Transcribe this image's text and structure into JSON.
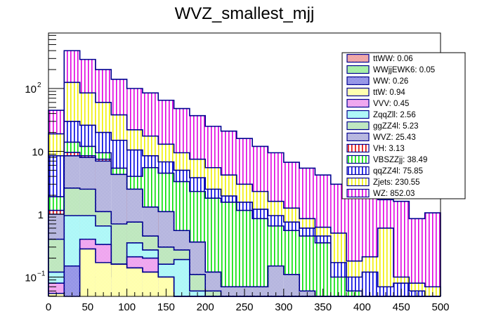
{
  "chart_data": {
    "type": "bar",
    "stacked": true,
    "title": "WVZ_smallest_mjj",
    "xlabel": "",
    "ylabel": "",
    "xlim": [
      0,
      500
    ],
    "ylim": [
      0.05,
      700
    ],
    "yscale": "log",
    "bin_width": 20,
    "x_ticks": [
      "0",
      "50",
      "100",
      "150",
      "200",
      "250",
      "300",
      "350",
      "400",
      "450",
      "500"
    ],
    "x_tick_values": [
      0,
      50,
      100,
      150,
      200,
      250,
      300,
      350,
      400,
      450,
      500
    ],
    "y_ticks": [
      {
        "value": 100,
        "base": "10",
        "exp": "2"
      },
      {
        "value": 10,
        "base": "10",
        "exp": ""
      },
      {
        "value": 1,
        "base": "1",
        "exp": ""
      },
      {
        "value": 0.1,
        "base": "10",
        "exp": "−1"
      }
    ],
    "legend_position": "top-right",
    "legend": [
      {
        "name": "ttWW",
        "label": "ttWW: 0.06",
        "color": "#e05050",
        "style": "checker"
      },
      {
        "name": "WWjjEWK6",
        "label": "WWjjEWK6: 0.05",
        "color": "#50e050",
        "style": "checker"
      },
      {
        "name": "WW",
        "label": "WW: 0.26",
        "color": "#3030d0",
        "style": "checker"
      },
      {
        "name": "ttW",
        "label": "ttW: 0.94",
        "color": "#ffff60",
        "style": "checker"
      },
      {
        "name": "VVV",
        "label": "VVV: 0.45",
        "color": "#e050e0",
        "style": "checker"
      },
      {
        "name": "ZqqZll",
        "label": "ZqqZll: 2.56",
        "color": "#60f0f0",
        "style": "checker"
      },
      {
        "name": "ggZZ4l",
        "label": "ggZZ4l: 5.23",
        "color": "#80d080",
        "style": "checker"
      },
      {
        "name": "WVZ",
        "label": "WVZ: 25.43",
        "color": "#7070c0",
        "style": "checker"
      },
      {
        "name": "VH",
        "label": "VH: 3.13",
        "color": "#e00000",
        "style": "vlines"
      },
      {
        "name": "VBSZZjj",
        "label": "VBSZZjj: 38.49",
        "color": "#00e000",
        "style": "vlines"
      },
      {
        "name": "qqZZ4l",
        "label": "qqZZ4l: 75.85",
        "color": "#0000e0",
        "style": "vlines"
      },
      {
        "name": "Zjets",
        "label": "Zjets: 230.55",
        "color": "#f0f000",
        "style": "vlines"
      },
      {
        "name": "WZ",
        "label": "WZ: 852.03",
        "color": "#e000e0",
        "style": "vlines"
      }
    ],
    "stack_order_bottom_to_top": [
      "ttW",
      "WW",
      "VVV",
      "ZqqZll",
      "ggZZ4l",
      "WVZ",
      "VH",
      "VBSZZjj",
      "qqZZ4l",
      "Zjets",
      "WZ"
    ],
    "stack_top_values": {
      "ttW": [
        0.055,
        0.03,
        0.28,
        0.17,
        0.16,
        0.14,
        0.12,
        0.1,
        0.03,
        0,
        0,
        0,
        0,
        0,
        0,
        0,
        0,
        0,
        0,
        0,
        0,
        0,
        0,
        0,
        0
      ],
      "WW": [
        0.055,
        0.15,
        0.1,
        0.1,
        0.16,
        0.14,
        0.12,
        0.1,
        0.03,
        0,
        0,
        0,
        0,
        0,
        0,
        0,
        0,
        0,
        0,
        0,
        0,
        0,
        0,
        0,
        0
      ],
      "VVV": [
        0.08,
        0.15,
        0.4,
        0.33,
        0.16,
        0.21,
        0.2,
        0.1,
        0.03,
        0,
        0,
        0,
        0,
        0,
        0,
        0,
        0,
        0,
        0,
        0,
        0,
        0,
        0,
        0,
        0
      ],
      "ZqqZll": [
        0.12,
        0.95,
        0.95,
        0.65,
        0.16,
        0.35,
        0.27,
        0.16,
        0.19,
        0.06,
        0,
        0,
        0,
        0,
        0,
        0,
        0,
        0,
        0,
        0,
        0,
        0,
        0,
        0,
        0
      ],
      "ggZZ4l": [
        0.4,
        2.6,
        2.5,
        1.1,
        0.7,
        0.75,
        0.45,
        0.3,
        0.27,
        0.11,
        0.06,
        0,
        0,
        0,
        0,
        0,
        0,
        0,
        0,
        0,
        0,
        0,
        0,
        0,
        0
      ],
      "WVZ": [
        1.0,
        8.5,
        8.0,
        7.0,
        4.3,
        2.5,
        1.3,
        1.1,
        0.55,
        0.36,
        0.12,
        0.07,
        0.07,
        0.07,
        0.15,
        0.11,
        0.06,
        0,
        0,
        0,
        0,
        0,
        0,
        0,
        0
      ],
      "VH": [
        1.15,
        9.6,
        8.5,
        7.5,
        4.3,
        2.5,
        1.3,
        1.1,
        0.55,
        0.36,
        0.12,
        0.07,
        0.07,
        0.07,
        0.15,
        0.11,
        0.06,
        0,
        0,
        0,
        0,
        0,
        0,
        0,
        0
      ],
      "VBSZZjj": [
        1.9,
        14,
        12,
        9.5,
        5.4,
        4.0,
        5.5,
        4.5,
        3.3,
        2.3,
        1.8,
        1.55,
        1.15,
        0.85,
        0.65,
        0.55,
        0.45,
        0.35,
        0.1,
        0.06,
        0,
        0,
        0,
        0,
        0
      ],
      "qqZZ4l": [
        8.5,
        30,
        26,
        20,
        15,
        10.5,
        8.5,
        6.8,
        5.0,
        3.8,
        2.5,
        1.95,
        1.55,
        1.2,
        0.95,
        0.75,
        0.6,
        0.45,
        0.17,
        0.1,
        0.12,
        0.07,
        0.08,
        0.06,
        0
      ],
      "Zjets": [
        19,
        125,
        85,
        60,
        38,
        22,
        17.5,
        13,
        9.5,
        7.5,
        5.5,
        4.2,
        3.0,
        2.3,
        1.6,
        1.25,
        0.85,
        0.62,
        0.5,
        0.18,
        0.21,
        0.6,
        0.1,
        0.08,
        0.07
      ],
      "WZ": [
        45,
        400,
        290,
        200,
        140,
        100,
        85,
        65,
        48,
        37,
        25,
        21,
        16,
        12,
        9.5,
        6.7,
        5.4,
        4.2,
        3.0,
        2.8,
        3.2,
        1.7,
        1.6,
        0.85,
        1.05
      ]
    }
  }
}
